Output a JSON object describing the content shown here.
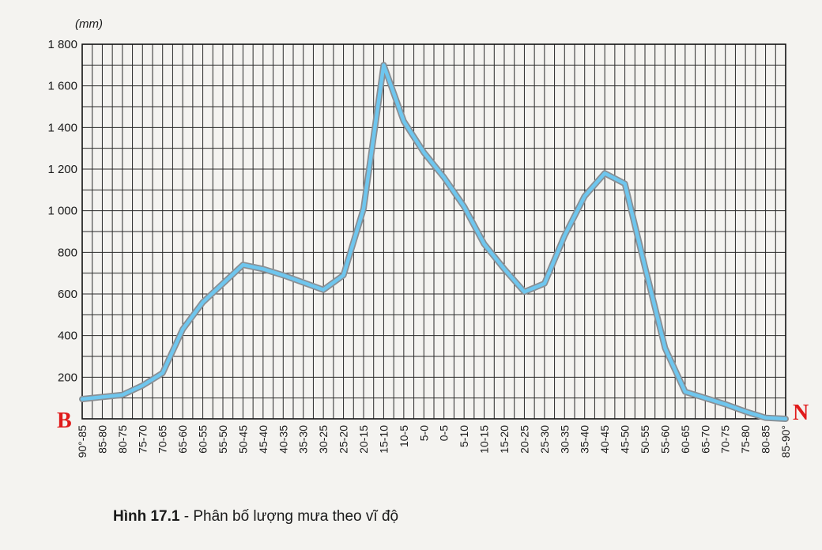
{
  "chart_data": {
    "type": "line",
    "unit_label": "(mm)",
    "y_ticks": [
      "1 800",
      "1 600",
      "1 400",
      "1 200",
      "1 000",
      "800",
      "600",
      "400",
      "200"
    ],
    "ylim": [
      0,
      1800
    ],
    "grid": true,
    "categories": [
      "90°-85",
      "85-80",
      "80-75",
      "75-70",
      "70-65",
      "65-60",
      "60-55",
      "55-50",
      "50-45",
      "45-40",
      "40-35",
      "35-30",
      "30-25",
      "25-20",
      "20-15",
      "15-10",
      "10-5",
      "5-0",
      "0-5",
      "5-10",
      "10-15",
      "15-20",
      "20-25",
      "25-30",
      "30-35",
      "35-40",
      "40-45",
      "45-50",
      "50-55",
      "55-60",
      "60-65",
      "65-70",
      "70-75",
      "75-80",
      "80-85",
      "85-90°"
    ],
    "series": [
      {
        "x": [
          0,
          2,
          3,
          4,
          5,
          6,
          7,
          8,
          9,
          10,
          12,
          13,
          14,
          15,
          16,
          17,
          18,
          19,
          20,
          21,
          22,
          23,
          24,
          25,
          26,
          27,
          28,
          29,
          30,
          31,
          32,
          33,
          34,
          35
        ],
        "values": [
          95,
          115,
          160,
          220,
          430,
          560,
          650,
          740,
          720,
          690,
          620,
          690,
          1010,
          1700,
          1430,
          1280,
          1160,
          1020,
          840,
          720,
          610,
          650,
          880,
          1070,
          1180,
          1130,
          730,
          340,
          130,
          100,
          70,
          35,
          5,
          0
        ]
      }
    ],
    "color": "#6ec6ee",
    "left_end_label": "B",
    "right_end_label": "N",
    "end_label_color": "#e01a1a"
  },
  "caption": {
    "figure_label": "Hình 17.1",
    "text": " - Phân bố lượng mưa theo vĩ độ"
  }
}
